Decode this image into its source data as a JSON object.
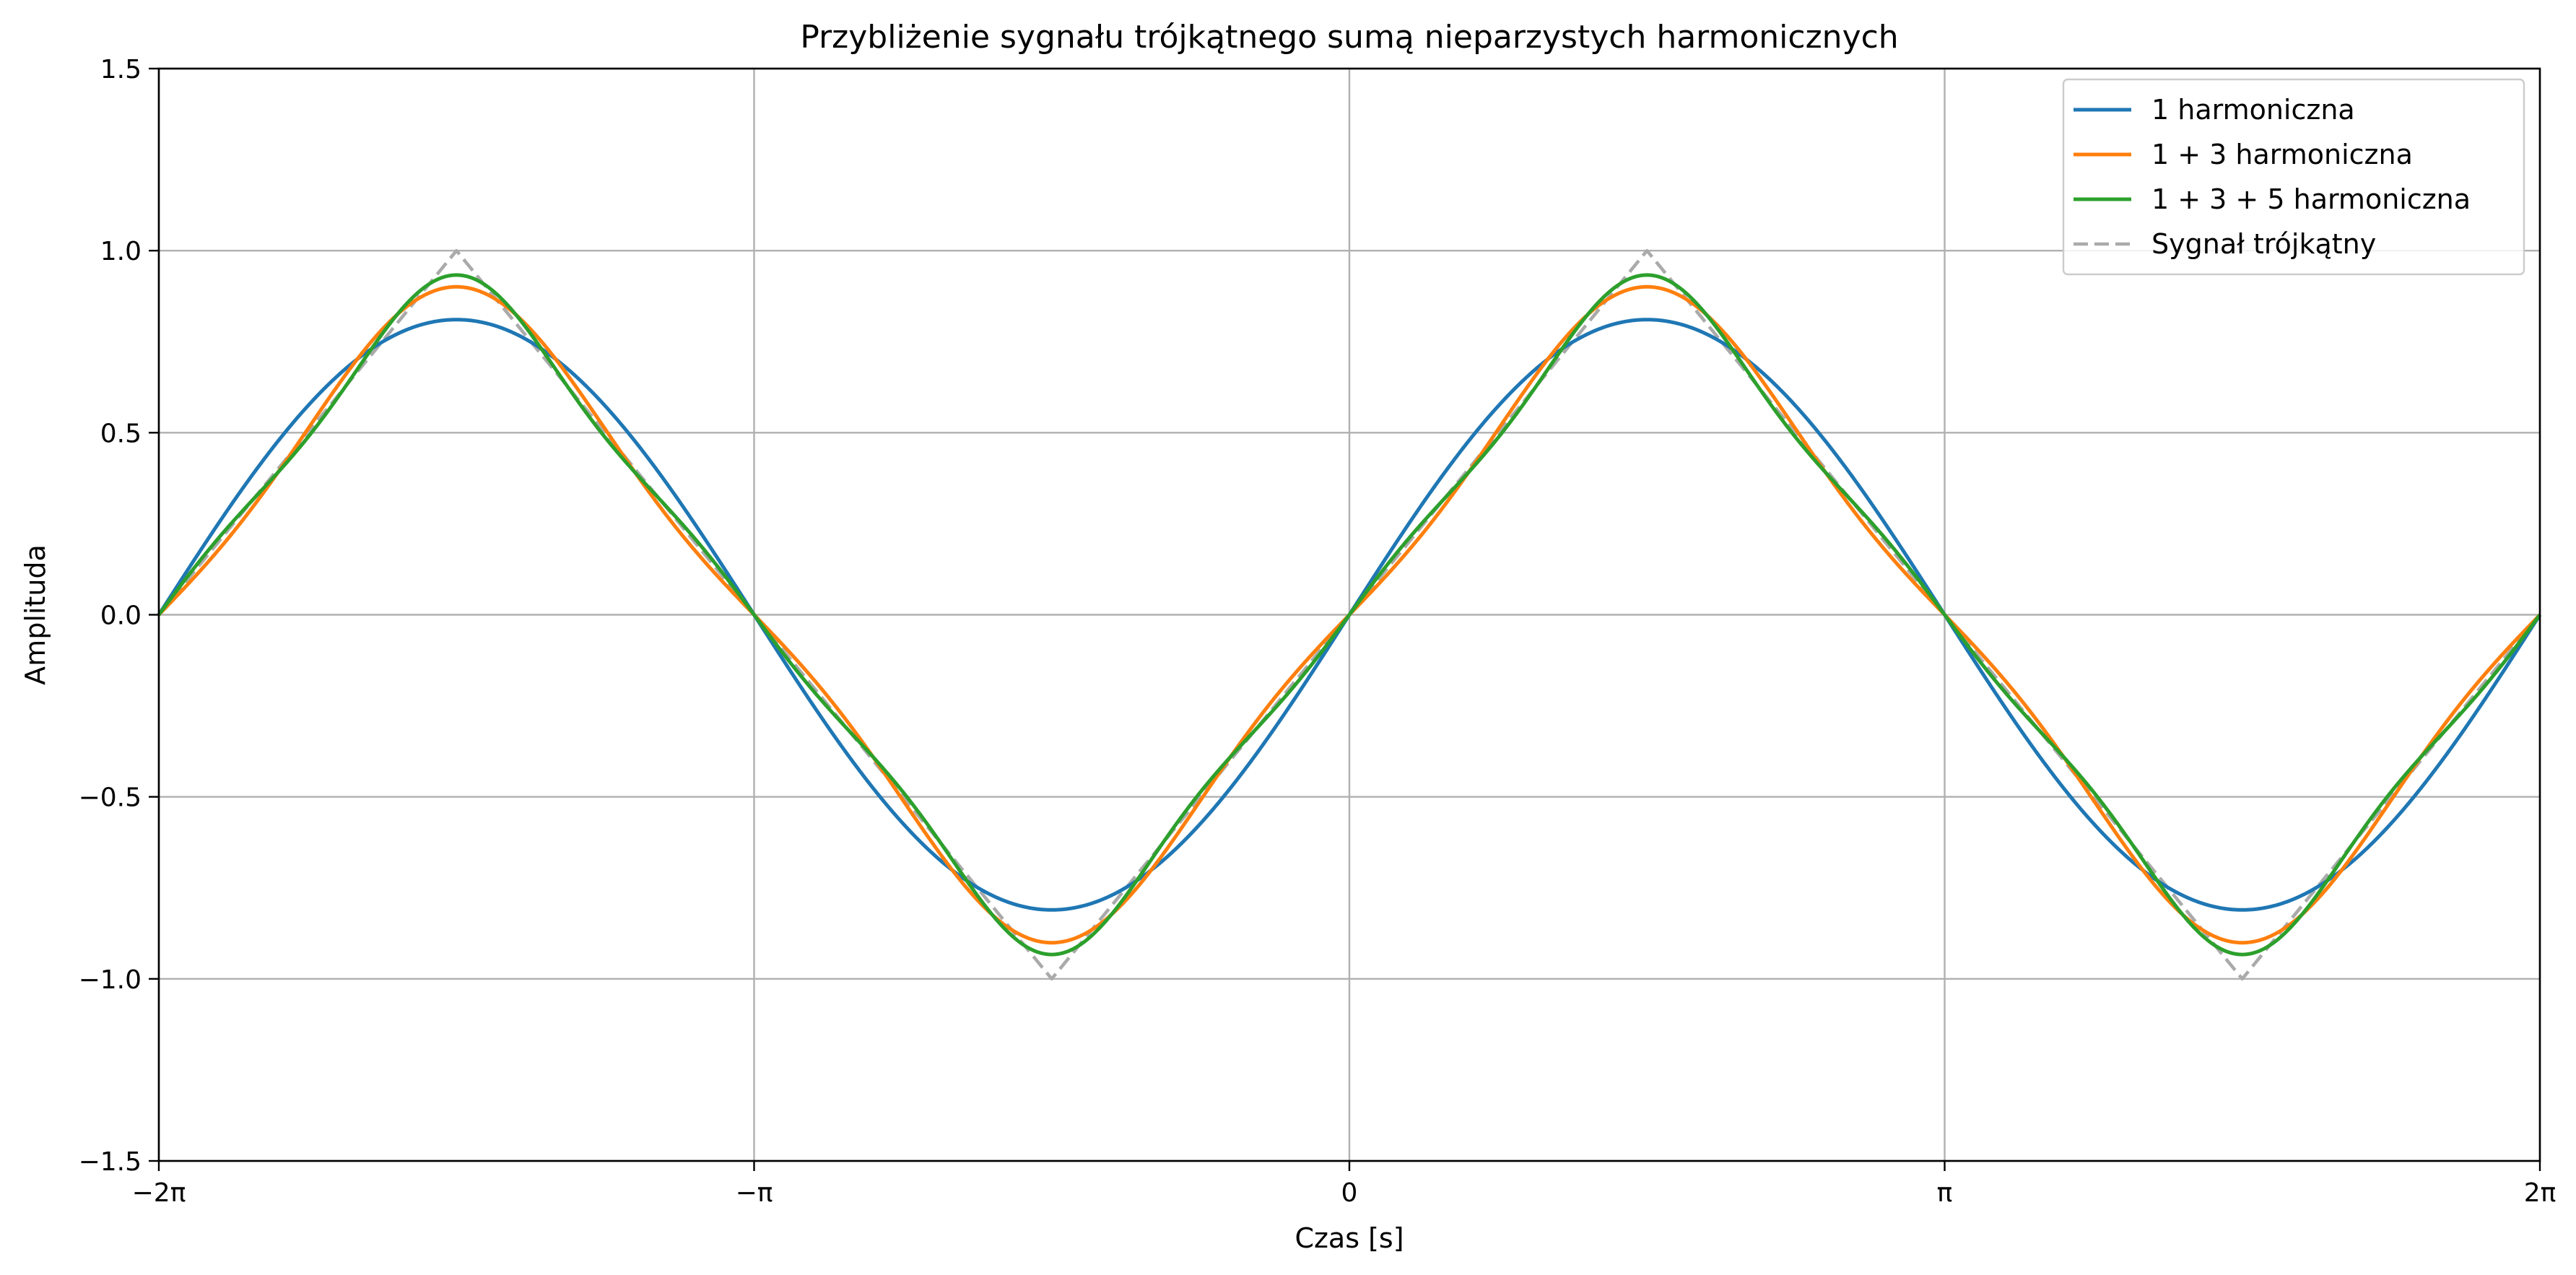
{
  "chart_data": {
    "type": "line",
    "title": "Przybliżenie sygnału trójkątnego sumą nieparzystych harmonicznych",
    "xlabel": "Czas [s]",
    "ylabel": "Amplituda",
    "xlim": [
      -6.283185307,
      6.283185307
    ],
    "ylim": [
      -1.5,
      1.5
    ],
    "xticks": [
      {
        "value": -6.283185307,
        "label": "−2π"
      },
      {
        "value": -3.141592654,
        "label": "−π"
      },
      {
        "value": 0,
        "label": "0"
      },
      {
        "value": 3.141592654,
        "label": "π"
      },
      {
        "value": 6.283185307,
        "label": "2π"
      }
    ],
    "yticks": [
      {
        "value": -1.5,
        "label": "−1.5"
      },
      {
        "value": -1.0,
        "label": "−1.0"
      },
      {
        "value": -0.5,
        "label": "−0.5"
      },
      {
        "value": 0.0,
        "label": "0.0"
      },
      {
        "value": 0.5,
        "label": "0.5"
      },
      {
        "value": 1.0,
        "label": "1.0"
      },
      {
        "value": 1.5,
        "label": "1.5"
      }
    ],
    "grid": true,
    "legend_position": "top-right",
    "series": [
      {
        "name": "1 harmoniczna",
        "color": "#1f77b4",
        "style": "solid",
        "harmonics": [
          1
        ]
      },
      {
        "name": "1 + 3 harmoniczna",
        "color": "#ff7f0e",
        "style": "solid",
        "harmonics": [
          1,
          3
        ]
      },
      {
        "name": "1 + 3 + 5 harmoniczna",
        "color": "#2ca02c",
        "style": "solid",
        "harmonics": [
          1,
          3,
          5
        ]
      },
      {
        "name": "Sygnał trójkątny",
        "color": "#aaaaaa",
        "style": "dashed",
        "harmonics": []
      }
    ]
  }
}
